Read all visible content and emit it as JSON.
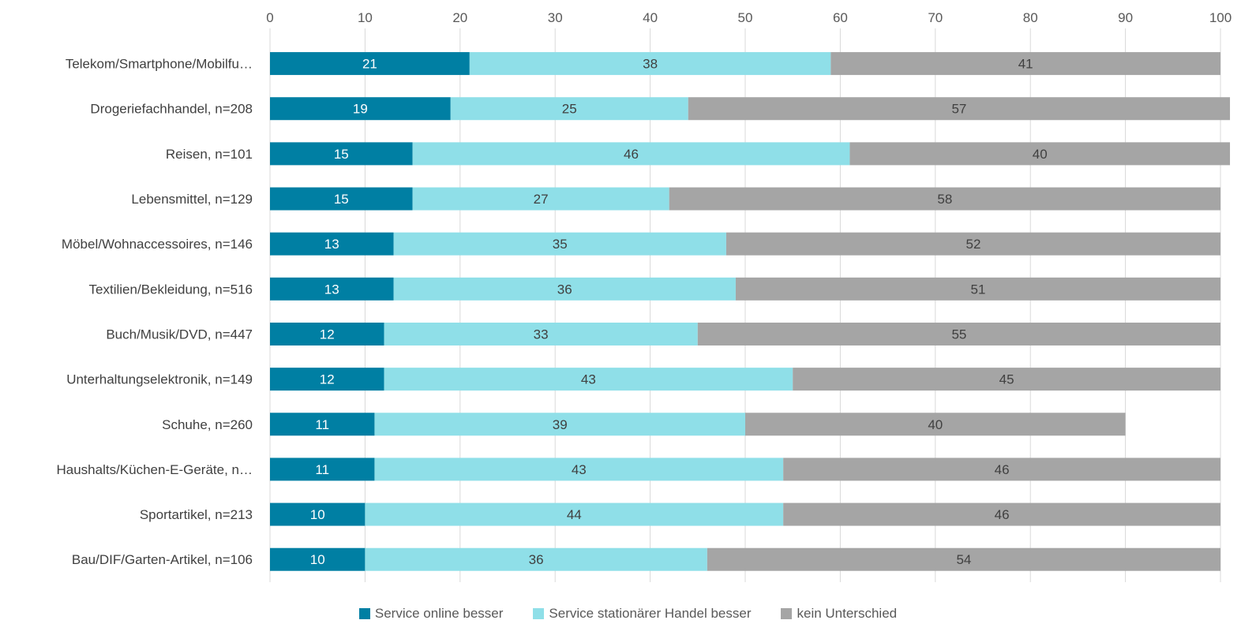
{
  "chart_data": {
    "type": "bar",
    "orientation": "horizontal",
    "stacked": true,
    "categories": [
      "Telekom/Smartphone/Mobilfu…",
      "Drogeriefachhandel, n=208",
      "Reisen, n=101",
      "Lebensmittel, n=129",
      "Möbel/Wohnaccessoires, n=146",
      "Textilien/Bekleidung, n=516",
      "Buch/Musik/DVD, n=447",
      "Unterhaltungselektronik, n=149",
      "Schuhe, n=260",
      "Haushalts/Küchen-E-Geräte, n…",
      "Sportartikel, n=213",
      "Bau/DIF/Garten-Artikel, n=106"
    ],
    "series": [
      {
        "name": "Service online besser",
        "color": "#007fa3",
        "label_color": "#ffffff",
        "values": [
          21,
          19,
          15,
          15,
          13,
          13,
          12,
          12,
          11,
          11,
          10,
          10
        ]
      },
      {
        "name": "Service stationärer Handel besser",
        "color": "#8fdfe8",
        "label_color": "#404040",
        "values": [
          38,
          25,
          46,
          27,
          35,
          36,
          33,
          43,
          39,
          43,
          44,
          36
        ]
      },
      {
        "name": "kein Unterschied",
        "color": "#a5a5a5",
        "label_color": "#404040",
        "values": [
          41,
          57,
          40,
          58,
          52,
          51,
          55,
          45,
          40,
          46,
          46,
          54
        ]
      }
    ],
    "xlim": [
      0,
      100
    ],
    "xticks": [
      0,
      10,
      20,
      30,
      40,
      50,
      60,
      70,
      80,
      90,
      100
    ],
    "axis_position": "top",
    "grid": true,
    "legend_position": "bottom",
    "title": "",
    "xlabel": "",
    "ylabel": ""
  }
}
